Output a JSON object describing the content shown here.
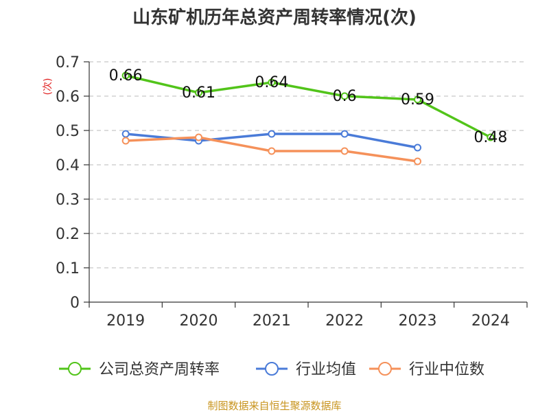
{
  "chart_data": {
    "type": "line",
    "title": "山东矿机历年总资产周转率情况(次)",
    "ylabel": "(次)",
    "xlabel": "",
    "categories": [
      "2019",
      "2020",
      "2021",
      "2022",
      "2023",
      "2024"
    ],
    "ylim": [
      0,
      0.7
    ],
    "yticks": [
      "0",
      "0.1",
      "0.2",
      "0.3",
      "0.4",
      "0.5",
      "0.6",
      "0.7"
    ],
    "grid": true,
    "legend_position": "bottom",
    "series": [
      {
        "name": "公司总资产周转率",
        "color": "#52c41a",
        "values": [
          0.66,
          0.61,
          0.64,
          0.6,
          0.59,
          0.48
        ],
        "labels": [
          "0.66",
          "0.61",
          "0.64",
          "0.6",
          "0.59",
          "0.48"
        ],
        "show_labels": true
      },
      {
        "name": "行业均值",
        "color": "#4a7bd8",
        "values": [
          0.49,
          0.47,
          0.49,
          0.49,
          0.45,
          null
        ],
        "show_labels": false
      },
      {
        "name": "行业中位数",
        "color": "#f5915a",
        "values": [
          0.47,
          0.48,
          0.44,
          0.44,
          0.41,
          null
        ],
        "show_labels": false
      }
    ]
  },
  "source": "制图数据来自恒生聚源数据库"
}
